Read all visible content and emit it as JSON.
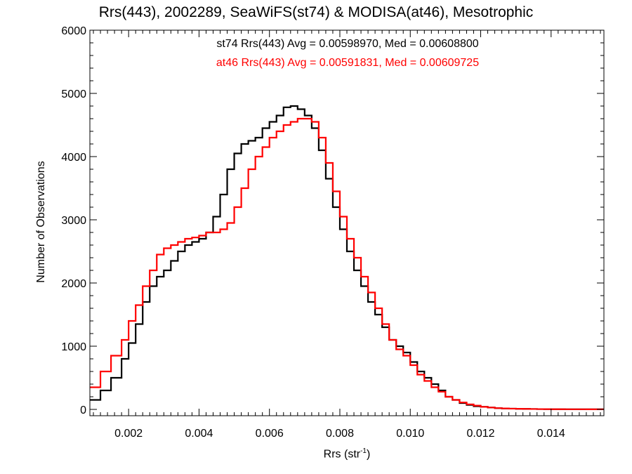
{
  "chart_data": {
    "type": "line",
    "step": true,
    "title": "Rrs(443), 2002289, SeaWiFS(st74) & MODISA(at46), Mesotrophic",
    "xlabel_main": "Rrs (str",
    "xlabel_sup": "-1",
    "xlabel_tail": ")",
    "ylabel": "Number of Observations",
    "xlim": [
      0.0009,
      0.0155
    ],
    "ylim": [
      -100,
      6000
    ],
    "xticks": [
      0.002,
      0.004,
      0.006,
      0.008,
      0.01,
      0.012,
      0.014
    ],
    "xtick_labels": [
      "0.002",
      "0.004",
      "0.006",
      "0.008",
      "0.010",
      "0.012",
      "0.014"
    ],
    "yticks": [
      0,
      1000,
      2000,
      3000,
      4000,
      5000,
      6000
    ],
    "ytick_labels": [
      "0",
      "1000",
      "2000",
      "3000",
      "4000",
      "5000",
      "6000"
    ],
    "grid": false,
    "annotations": [
      {
        "text": "st74 Rrs(443) Avg = 0.00598970, Med = 0.00608800",
        "color": "#000000"
      },
      {
        "text": "at46 Rrs(443) Avg = 0.00591831, Med = 0.00609725",
        "color": "#ff0000"
      }
    ],
    "series": [
      {
        "color": "#000000",
        "x": [
          0.0009,
          0.0012,
          0.0015,
          0.0018,
          0.002,
          0.0022,
          0.0024,
          0.0026,
          0.0028,
          0.003,
          0.0032,
          0.0034,
          0.0036,
          0.0038,
          0.004,
          0.0042,
          0.0044,
          0.0046,
          0.0048,
          0.005,
          0.0052,
          0.0054,
          0.0056,
          0.0058,
          0.006,
          0.0062,
          0.0064,
          0.0066,
          0.0068,
          0.007,
          0.0072,
          0.0074,
          0.0076,
          0.0078,
          0.008,
          0.0082,
          0.0084,
          0.0086,
          0.0088,
          0.009,
          0.0092,
          0.0094,
          0.0096,
          0.0098,
          0.01,
          0.0102,
          0.0104,
          0.0106,
          0.0108,
          0.011,
          0.0112,
          0.0114,
          0.0116,
          0.0118,
          0.012,
          0.0122,
          0.0124,
          0.0126,
          0.0128,
          0.013,
          0.0132,
          0.0134,
          0.0136,
          0.0138,
          0.014,
          0.0142,
          0.0144,
          0.0146,
          0.0148,
          0.015,
          0.0152,
          0.0154,
          0.0155
        ],
        "y": [
          150,
          300,
          500,
          800,
          1050,
          1350,
          1700,
          1950,
          2100,
          2200,
          2350,
          2500,
          2600,
          2650,
          2700,
          2800,
          3050,
          3400,
          3800,
          4050,
          4200,
          4250,
          4300,
          4450,
          4550,
          4650,
          4780,
          4800,
          4750,
          4650,
          4450,
          4100,
          3650,
          3200,
          2850,
          2500,
          2200,
          1950,
          1700,
          1500,
          1300,
          1100,
          1000,
          900,
          750,
          600,
          500,
          400,
          300,
          200,
          150,
          100,
          70,
          50,
          40,
          30,
          20,
          15,
          12,
          10,
          8,
          6,
          5,
          4,
          3,
          3,
          2,
          2,
          2,
          1,
          1,
          1,
          1
        ]
      },
      {
        "color": "#ff0000",
        "x": [
          0.0009,
          0.0012,
          0.0015,
          0.0018,
          0.002,
          0.0022,
          0.0024,
          0.0026,
          0.0028,
          0.003,
          0.0032,
          0.0034,
          0.0036,
          0.0038,
          0.004,
          0.0042,
          0.0044,
          0.0046,
          0.0048,
          0.005,
          0.0052,
          0.0054,
          0.0056,
          0.0058,
          0.006,
          0.0062,
          0.0064,
          0.0066,
          0.0068,
          0.007,
          0.0072,
          0.0074,
          0.0076,
          0.0078,
          0.008,
          0.0082,
          0.0084,
          0.0086,
          0.0088,
          0.009,
          0.0092,
          0.0094,
          0.0096,
          0.0098,
          0.01,
          0.0102,
          0.0104,
          0.0106,
          0.0108,
          0.011,
          0.0112,
          0.0114,
          0.0116,
          0.0118,
          0.012,
          0.0122,
          0.0124,
          0.0126,
          0.0128,
          0.013,
          0.0132,
          0.0134,
          0.0136,
          0.0138,
          0.014,
          0.0142,
          0.0144,
          0.0146,
          0.0148,
          0.015,
          0.0152,
          0.0154,
          0.0155
        ],
        "y": [
          350,
          600,
          850,
          1100,
          1400,
          1650,
          1950,
          2200,
          2450,
          2550,
          2600,
          2650,
          2700,
          2720,
          2750,
          2800,
          2800,
          2850,
          2950,
          3200,
          3500,
          3800,
          4000,
          4150,
          4300,
          4400,
          4500,
          4550,
          4600,
          4600,
          4550,
          4300,
          3900,
          3450,
          3050,
          2700,
          2400,
          2100,
          1850,
          1600,
          1350,
          1100,
          950,
          850,
          700,
          550,
          450,
          350,
          280,
          200,
          150,
          110,
          80,
          60,
          40,
          30,
          20,
          15,
          12,
          10,
          8,
          6,
          5,
          4,
          3,
          3,
          2,
          2,
          2,
          1,
          1,
          1,
          1
        ]
      }
    ]
  }
}
